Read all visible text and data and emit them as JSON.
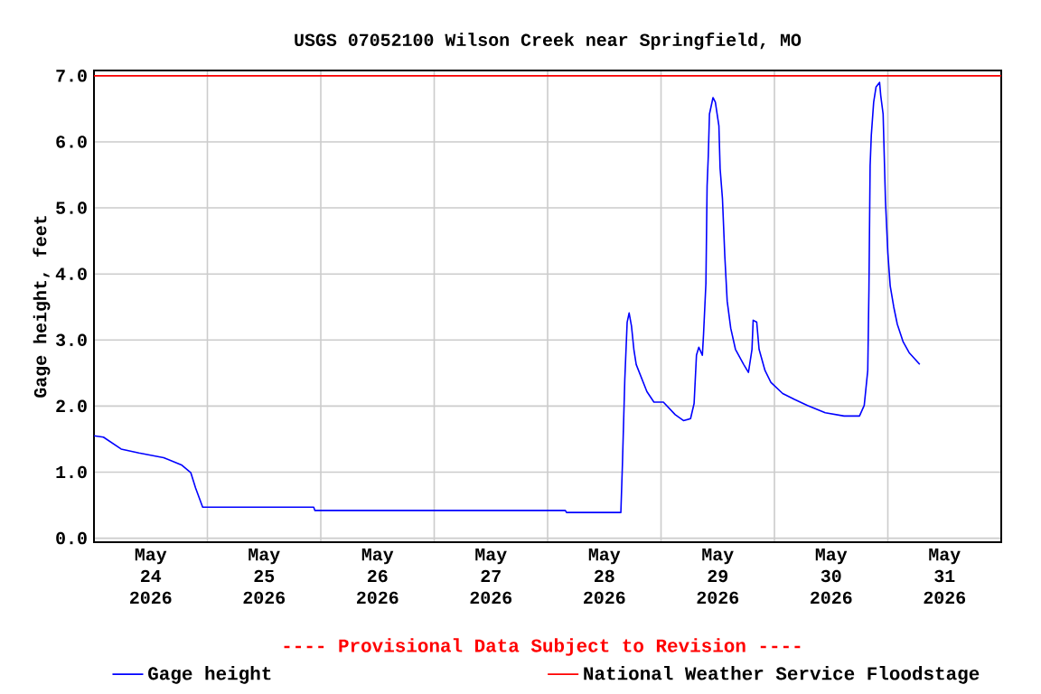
{
  "chart_data": {
    "type": "line",
    "title": "USGS 07052100 Wilson Creek near Springfield, MO",
    "ylabel": "Gage height, feet",
    "xlim": [
      "2026-05-24T00:00",
      "2026-06-01T00:00"
    ],
    "ylim": [
      -0.06,
      7.08
    ],
    "xticks": [
      {
        "value": "2026-05-25T00:00",
        "label": null
      },
      {
        "value": "2026-05-26T00:00",
        "label": null
      },
      {
        "value": "2026-05-27T00:00",
        "label": null
      },
      {
        "value": "2026-05-28T00:00",
        "label": null
      },
      {
        "value": "2026-05-29T00:00",
        "label": null
      },
      {
        "value": "2026-05-30T00:00",
        "label": null
      },
      {
        "value": "2026-05-31T00:00",
        "label": null
      },
      {
        "value": "2026-05-24T12:00",
        "label": "May 24 2026"
      },
      {
        "value": "2026-05-25T12:00",
        "label": "May 25 2026"
      },
      {
        "value": "2026-05-26T12:00",
        "label": "May 26 2026"
      },
      {
        "value": "2026-05-27T12:00",
        "label": "May 27 2026"
      },
      {
        "value": "2026-05-28T12:00",
        "label": "May 28 2026"
      },
      {
        "value": "2026-05-29T12:00",
        "label": "May 29 2026"
      },
      {
        "value": "2026-05-30T12:00",
        "label": "May 30 2026"
      },
      {
        "value": "2026-05-31T12:00",
        "label": "May 31 2026"
      }
    ],
    "yticks": [
      {
        "value": 0,
        "label": "0.0"
      },
      {
        "value": 1,
        "label": "1.0"
      },
      {
        "value": 2,
        "label": "2.0"
      },
      {
        "value": 3,
        "label": "3.0"
      },
      {
        "value": 4,
        "label": "4.0"
      },
      {
        "value": 5,
        "label": "5.0"
      },
      {
        "value": 6,
        "label": "6.0"
      },
      {
        "value": 7,
        "label": "7.0"
      }
    ],
    "grid": true,
    "legend": "bottom",
    "annotations": [
      "---- Provisional Data Subject to Revision ----"
    ],
    "ref_lines": [
      {
        "axis": "y",
        "value": 7.0,
        "label": "National Weather Service Floodstage",
        "color": "#ff0000"
      }
    ],
    "series": [
      {
        "name": "Gage height",
        "color": "#0000ff",
        "x": [
          "2026-05-24T00:00",
          "2026-05-24T02:00",
          "2026-05-24T05:45",
          "2026-05-24T09:30",
          "2026-05-24T14:45",
          "2026-05-24T18:30",
          "2026-05-24T20:30",
          "2026-05-24T21:30",
          "2026-05-24T23:00",
          "2026-05-25T22:30",
          "2026-05-25T22:45",
          "2026-05-28T03:45",
          "2026-05-28T04:00",
          "2026-05-28T15:30",
          "2026-05-28T15:50",
          "2026-05-28T16:20",
          "2026-05-28T16:50",
          "2026-05-28T17:15",
          "2026-05-28T17:45",
          "2026-05-28T18:15",
          "2026-05-28T18:45",
          "2026-05-28T21:00",
          "2026-05-28T22:30",
          "2026-05-29T00:30",
          "2026-05-29T03:00",
          "2026-05-29T04:45",
          "2026-05-29T06:15",
          "2026-05-29T07:00",
          "2026-05-29T07:30",
          "2026-05-29T08:00",
          "2026-05-29T08:45",
          "2026-05-29T09:00",
          "2026-05-29T09:30",
          "2026-05-29T09:45",
          "2026-05-29T10:00",
          "2026-05-29T10:15",
          "2026-05-29T11:00",
          "2026-05-29T11:30",
          "2026-05-29T12:15",
          "2026-05-29T12:30",
          "2026-05-29T13:00",
          "2026-05-29T13:30",
          "2026-05-29T14:00",
          "2026-05-29T14:45",
          "2026-05-29T15:45",
          "2026-05-29T17:30",
          "2026-05-29T18:30",
          "2026-05-29T19:15",
          "2026-05-29T19:30",
          "2026-05-29T20:15",
          "2026-05-29T20:45",
          "2026-05-29T22:00",
          "2026-05-29T23:15",
          "2026-05-30T01:45",
          "2026-05-30T04:15",
          "2026-05-30T07:00",
          "2026-05-30T10:45",
          "2026-05-30T14:45",
          "2026-05-30T18:00",
          "2026-05-30T19:00",
          "2026-05-30T19:45",
          "2026-05-30T20:00",
          "2026-05-30T20:15",
          "2026-05-30T20:30",
          "2026-05-30T21:00",
          "2026-05-30T21:30",
          "2026-05-30T22:15",
          "2026-05-30T22:30",
          "2026-05-30T23:00",
          "2026-05-30T23:30",
          "2026-05-31T00:00",
          "2026-05-31T00:30",
          "2026-05-31T01:15",
          "2026-05-31T02:00",
          "2026-05-31T03:15",
          "2026-05-31T04:30",
          "2026-05-31T06:45"
        ],
        "values": [
          1.55,
          1.53,
          1.35,
          1.29,
          1.22,
          1.11,
          0.99,
          0.76,
          0.47,
          0.47,
          0.42,
          0.42,
          0.39,
          0.39,
          1.12,
          2.4,
          3.27,
          3.41,
          3.21,
          2.86,
          2.63,
          2.22,
          2.06,
          2.06,
          1.87,
          1.78,
          1.81,
          2.04,
          2.77,
          2.89,
          2.77,
          3.09,
          3.86,
          5.33,
          5.78,
          6.42,
          6.67,
          6.6,
          6.24,
          5.6,
          5.14,
          4.27,
          3.59,
          3.18,
          2.86,
          2.63,
          2.51,
          2.86,
          3.3,
          3.27,
          2.86,
          2.54,
          2.36,
          2.19,
          2.1,
          2.01,
          1.9,
          1.85,
          1.85,
          2.01,
          2.54,
          3.77,
          5.64,
          6.1,
          6.6,
          6.83,
          6.9,
          6.7,
          6.42,
          5.1,
          4.32,
          3.82,
          3.5,
          3.24,
          2.97,
          2.81,
          2.63
        ]
      }
    ]
  }
}
